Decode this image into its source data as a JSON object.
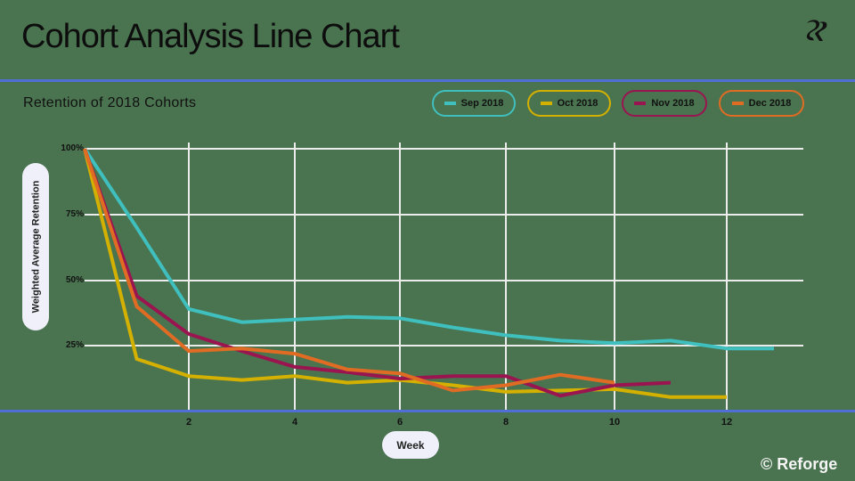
{
  "header": {
    "title": "Cohort Analysis Line Chart",
    "logo_icon": "reforge-logo-icon"
  },
  "chart_header": {
    "subtitle": "Retention of 2018 Cohorts"
  },
  "legend": [
    {
      "label": "Sep 2018",
      "color": "#3fbfbd"
    },
    {
      "label": "Oct 2018",
      "color": "#d4b000"
    },
    {
      "label": "Nov 2018",
      "color": "#9a1550"
    },
    {
      "label": "Dec 2018",
      "color": "#e06c24"
    }
  ],
  "axes": {
    "ylabel": "Weighted Average Retention",
    "xlabel": "Week",
    "yticks": [
      "100%",
      "75%",
      "50%",
      "25%"
    ],
    "xticks": [
      "2",
      "4",
      "6",
      "8",
      "10",
      "12"
    ]
  },
  "footer": {
    "copyright": "© Reforge"
  },
  "colors": {
    "background": "#4a7350",
    "divider": "#4f6fd6",
    "grid": "#ececec"
  },
  "chart_data": {
    "type": "line",
    "title": "Retention of 2018 Cohorts",
    "xlabel": "Week",
    "ylabel": "Weighted Average Retention",
    "ylim": [
      0,
      100
    ],
    "xlim": [
      0,
      13
    ],
    "grid": true,
    "legend_position": "top-right",
    "x": [
      0,
      1,
      2,
      3,
      4,
      5,
      6,
      7,
      8,
      9,
      10,
      11,
      12,
      13
    ],
    "series": [
      {
        "name": "Sep 2018",
        "color": "#3fbfbd",
        "values": [
          100,
          70,
          39,
          34,
          35,
          36,
          35.5,
          32,
          29,
          27,
          26,
          27,
          24,
          24
        ]
      },
      {
        "name": "Oct 2018",
        "color": "#d4b000",
        "values": [
          100,
          20,
          13.5,
          12,
          13.5,
          11,
          12,
          10,
          7.5,
          8,
          8.5,
          5.5,
          5.5
        ]
      },
      {
        "name": "Nov 2018",
        "color": "#9a1550",
        "values": [
          100,
          44,
          29.5,
          23,
          17,
          15,
          12.5,
          13.5,
          13.5,
          6,
          10,
          11
        ]
      },
      {
        "name": "Dec 2018",
        "color": "#e06c24",
        "values": [
          100,
          40,
          23,
          24,
          22,
          16,
          14.5,
          8,
          10,
          14,
          11
        ]
      }
    ]
  }
}
